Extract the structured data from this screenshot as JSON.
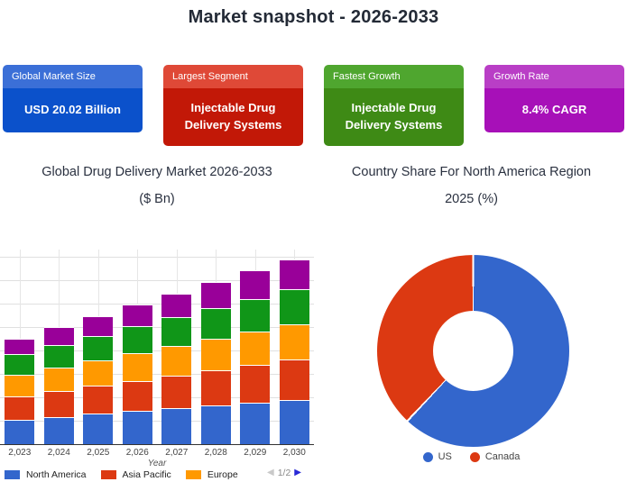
{
  "header": {
    "title": "Market snapshot - 2026-2033"
  },
  "cards": [
    {
      "label": "Global Market Size",
      "value": "USD 20.02 Billion",
      "header_color": "#3b6fd7",
      "body_color": "#0b51cb"
    },
    {
      "label": "Largest Segment",
      "value": "Injectable Drug Delivery Systems",
      "header_color": "#df4937",
      "body_color": "#c21807"
    },
    {
      "label": "Fastest Growth",
      "value": "Injectable Drug Delivery Systems",
      "header_color": "#4fa62f",
      "body_color": "#3e8a15"
    },
    {
      "label": "Growth Rate",
      "value": "8.4% CAGR",
      "header_color": "#b93ec6",
      "body_color": "#a710b8"
    }
  ],
  "sections": {
    "left_title_line1": "Global Drug Delivery Market 2026-2033",
    "left_title_line2": "($ Bn)",
    "right_title_line1": "Country Share For North America Region",
    "right_title_line2": "2025 (%)"
  },
  "chart_data": [
    {
      "type": "bar",
      "stacked": true,
      "title": "Global Drug Delivery Market 2026-2033 ($ Bn)",
      "xlabel": "Year",
      "ylabel": "",
      "ylim": [
        0,
        80
      ],
      "grid_step": 10,
      "grid": true,
      "categories": [
        "2,023",
        "2,024",
        "2,025",
        "2,026",
        "2,027",
        "2,028",
        "2,029",
        "2,030"
      ],
      "series": [
        {
          "name": "North America",
          "color": "#3366cc",
          "values": [
            10.5,
            11.7,
            12.9,
            14.1,
            15.4,
            16.6,
            17.8,
            19.0
          ]
        },
        {
          "name": "Asia Pacific",
          "color": "#dc3912",
          "values": [
            10.0,
            11.0,
            12.0,
            13.0,
            14.0,
            15.0,
            16.0,
            17.0
          ]
        },
        {
          "name": "Europe",
          "color": "#ff9900",
          "values": [
            9.0,
            9.9,
            10.7,
            11.6,
            12.4,
            13.3,
            14.1,
            15.0
          ]
        },
        {
          "name": "",
          "color": "#109618",
          "values": [
            9.0,
            9.9,
            10.7,
            11.6,
            12.4,
            13.3,
            14.1,
            15.0
          ]
        },
        {
          "name": "",
          "color": "#990099",
          "values": [
            6.5,
            7.4,
            8.3,
            9.3,
            10.2,
            11.1,
            12.1,
            13.0
          ]
        }
      ],
      "legend": {
        "position": "bottom",
        "visible_items": [
          {
            "label": "North America",
            "color": "#3366cc"
          },
          {
            "label": "Asia Pacific",
            "color": "#dc3912"
          },
          {
            "label": "Europe",
            "color": "#ff9900"
          }
        ],
        "pagination": "1/2",
        "prev_arrow": "◀",
        "next_arrow": "▶"
      }
    },
    {
      "type": "pie",
      "donut": true,
      "title": "Country Share For North America Region 2025 (%)",
      "labels": [
        "US",
        "Canada"
      ],
      "values": [
        62,
        38
      ],
      "colors": [
        "#3366cc",
        "#dc3912"
      ],
      "legend_position": "bottom"
    }
  ]
}
